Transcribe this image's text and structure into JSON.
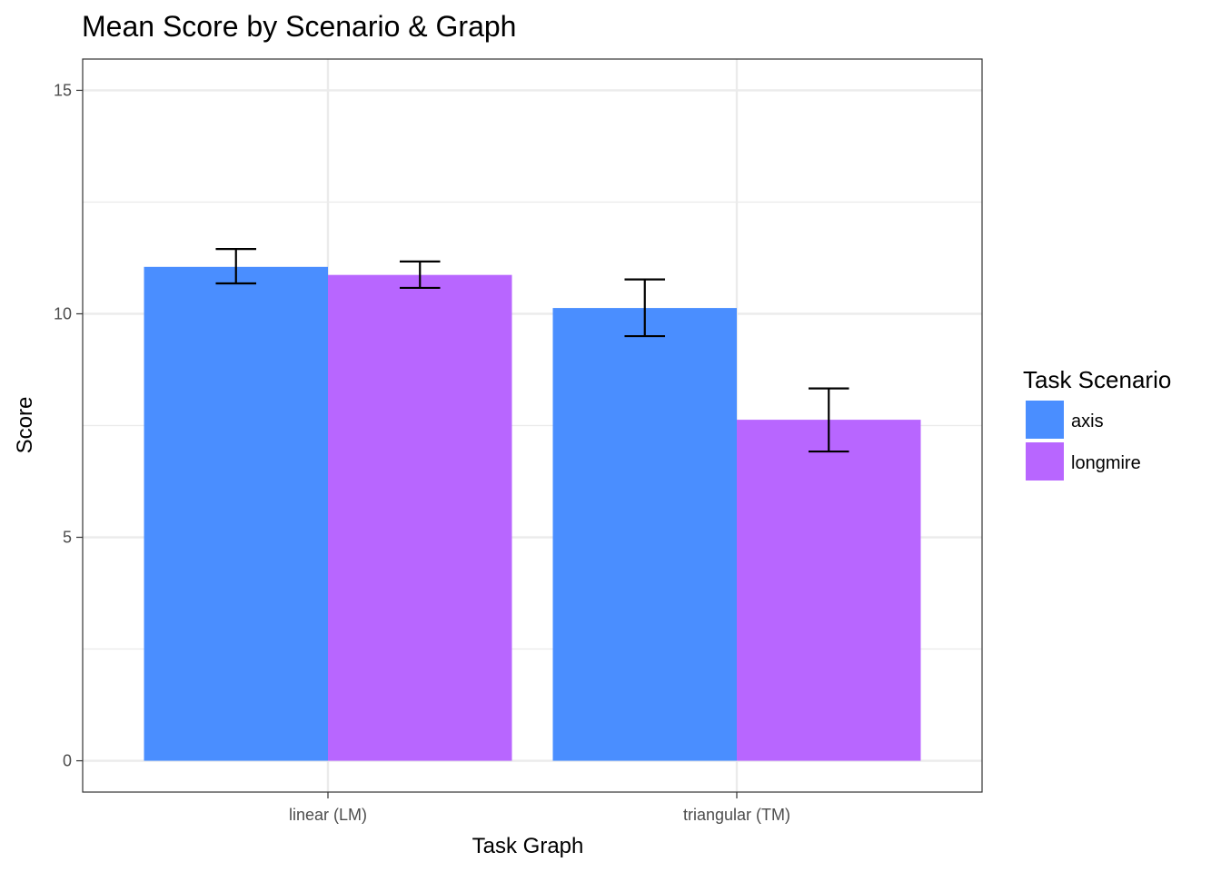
{
  "chart_data": {
    "type": "bar",
    "title": "Mean Score by Scenario & Graph",
    "xlabel": "Task Graph",
    "ylabel": "Score",
    "categories": [
      "linear (LM)",
      "triangular (TM)"
    ],
    "series": [
      {
        "name": "axis",
        "color": "#4a8eff",
        "values": [
          11.05,
          10.13
        ],
        "error_low": [
          10.68,
          9.5
        ],
        "error_high": [
          11.45,
          10.77
        ]
      },
      {
        "name": "longmire",
        "color": "#b866ff",
        "values": [
          10.87,
          7.63
        ],
        "error_low": [
          10.58,
          6.92
        ],
        "error_high": [
          11.17,
          8.33
        ]
      }
    ],
    "ylim": [
      -0.7,
      15.7
    ],
    "yticks": [
      0,
      5,
      10,
      15
    ],
    "y_minor_ticks": [
      2.5,
      7.5,
      12.5
    ],
    "grid": true,
    "legend": {
      "title": "Task Scenario",
      "position": "right"
    }
  }
}
